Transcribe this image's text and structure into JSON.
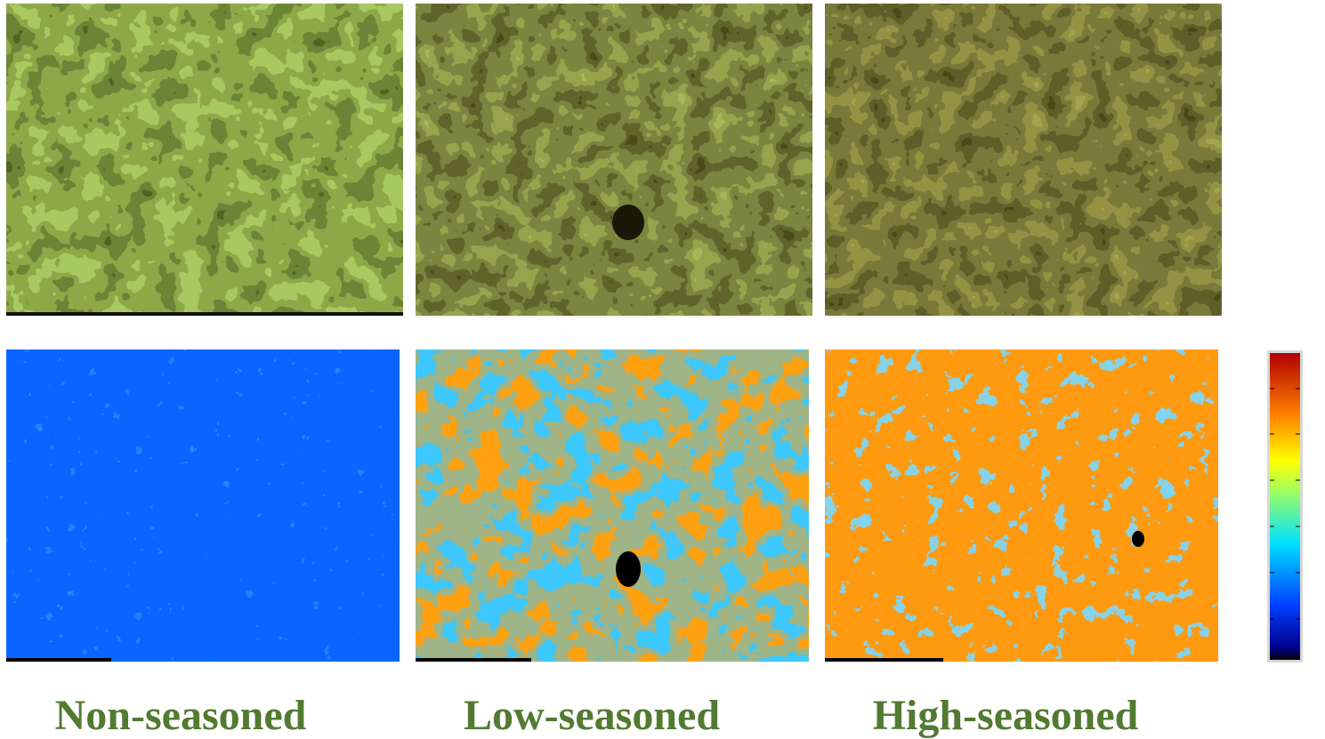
{
  "labels": [
    "Non-seasoned",
    "Low-seasoned",
    "High-seasoned"
  ]
}
